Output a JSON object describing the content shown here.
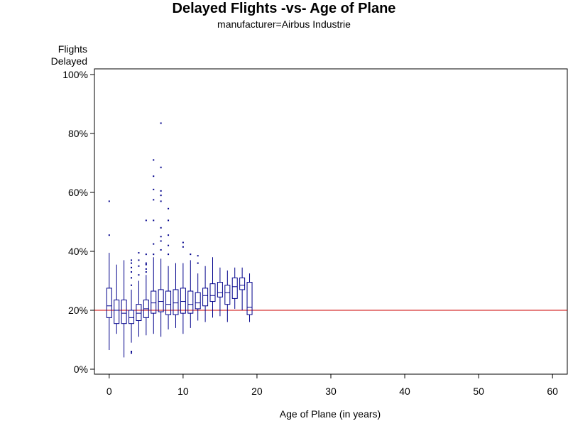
{
  "chart_data": {
    "type": "box",
    "title": "Delayed Flights -vs- Age of Plane",
    "subtitle": "manufacturer=Airbus Industrie",
    "ylabel_line1": "Flights",
    "ylabel_line2": "Delayed",
    "xlabel": "Age of Plane (in years)",
    "xlim": [
      -2,
      62
    ],
    "ylim": [
      0,
      100
    ],
    "xticks": [
      0,
      10,
      20,
      30,
      40,
      50,
      60
    ],
    "yticks": [
      0,
      20,
      40,
      60,
      80,
      100
    ],
    "ytick_labels": [
      "0%",
      "20%",
      "40%",
      "60%",
      "80%",
      "100%"
    ],
    "reference_line": {
      "y": 20,
      "color": "#cc0000"
    },
    "box_color": "#00008b",
    "grid": false,
    "boxes": [
      {
        "x": 0,
        "whisker_low": 6.5,
        "q1": 17.5,
        "median": 21.5,
        "q3": 27.5,
        "whisker_high": 39.5,
        "outliers": [
          45.5,
          57
        ]
      },
      {
        "x": 1,
        "whisker_low": 12,
        "q1": 15.5,
        "median": 20,
        "q3": 23.5,
        "whisker_high": 35.5,
        "outliers": []
      },
      {
        "x": 2,
        "whisker_low": 4,
        "q1": 15.5,
        "median": 19,
        "q3": 23.5,
        "whisker_high": 37,
        "outliers": []
      },
      {
        "x": 3,
        "whisker_low": 9,
        "q1": 15.5,
        "median": 17.5,
        "q3": 20,
        "whisker_high": 27,
        "outliers": [
          5.5,
          6,
          28.5,
          31,
          33,
          34.5,
          36,
          37
        ]
      },
      {
        "x": 4,
        "whisker_low": 11,
        "q1": 16.5,
        "median": 19,
        "q3": 22,
        "whisker_high": 30,
        "outliers": [
          32,
          35,
          37,
          39.5
        ]
      },
      {
        "x": 5,
        "whisker_low": 11.5,
        "q1": 17.5,
        "median": 20.5,
        "q3": 23.5,
        "whisker_high": 32,
        "outliers": [
          33,
          34,
          35.5,
          36,
          39,
          50.5
        ]
      },
      {
        "x": 6,
        "whisker_low": 12,
        "q1": 19,
        "median": 22.5,
        "q3": 26.5,
        "whisker_high": 38,
        "outliers": [
          39,
          42.5,
          50.5,
          57.5,
          61,
          65.5,
          71
        ]
      },
      {
        "x": 7,
        "whisker_low": 11,
        "q1": 19.5,
        "median": 23,
        "q3": 27,
        "whisker_high": 37.5,
        "outliers": [
          40.5,
          43.5,
          45,
          48,
          57,
          59,
          60.5,
          68.5,
          83.5
        ]
      },
      {
        "x": 8,
        "whisker_low": 13.5,
        "q1": 18.5,
        "median": 22,
        "q3": 26.5,
        "whisker_high": 35,
        "outliers": [
          39,
          42,
          45.5,
          50.5,
          54.5
        ]
      },
      {
        "x": 9,
        "whisker_low": 14,
        "q1": 18.5,
        "median": 22.5,
        "q3": 27,
        "whisker_high": 36,
        "outliers": []
      },
      {
        "x": 10,
        "whisker_low": 12,
        "q1": 19,
        "median": 23,
        "q3": 27.5,
        "whisker_high": 36,
        "outliers": [
          41.5,
          43
        ]
      },
      {
        "x": 11,
        "whisker_low": 14,
        "q1": 19,
        "median": 22,
        "q3": 26.5,
        "whisker_high": 37,
        "outliers": [
          39
        ]
      },
      {
        "x": 12,
        "whisker_low": 16.5,
        "q1": 20.5,
        "median": 22.5,
        "q3": 26,
        "whisker_high": 32.5,
        "outliers": [
          36,
          38.5
        ]
      },
      {
        "x": 13,
        "whisker_low": 16,
        "q1": 21.5,
        "median": 25,
        "q3": 27.5,
        "whisker_high": 35,
        "outliers": []
      },
      {
        "x": 14,
        "whisker_low": 17.5,
        "q1": 23,
        "median": 25,
        "q3": 29,
        "whisker_high": 38,
        "outliers": []
      },
      {
        "x": 15,
        "whisker_low": 18,
        "q1": 24.5,
        "median": 26,
        "q3": 29.5,
        "whisker_high": 34.5,
        "outliers": []
      },
      {
        "x": 16,
        "whisker_low": 16,
        "q1": 22,
        "median": 26,
        "q3": 28.5,
        "whisker_high": 33.5,
        "outliers": []
      },
      {
        "x": 17,
        "whisker_low": 20.5,
        "q1": 24,
        "median": 28,
        "q3": 31,
        "whisker_high": 34.5,
        "outliers": []
      },
      {
        "x": 18,
        "whisker_low": 20,
        "q1": 27,
        "median": 28.5,
        "q3": 31,
        "whisker_high": 34.5,
        "outliers": []
      },
      {
        "x": 19,
        "whisker_low": 16,
        "q1": 18.5,
        "median": 21,
        "q3": 29.5,
        "whisker_high": 32.5,
        "outliers": []
      }
    ]
  }
}
